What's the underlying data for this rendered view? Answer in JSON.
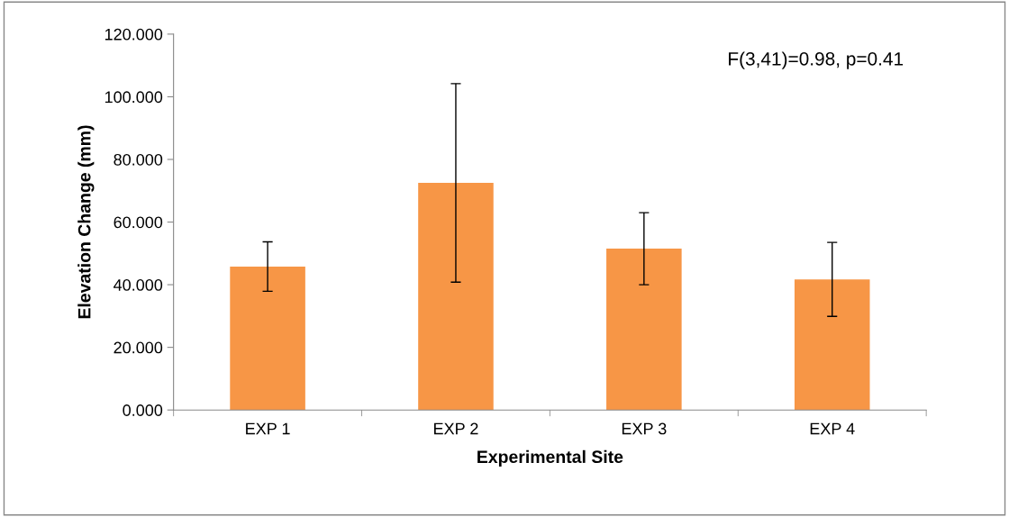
{
  "chart_data": {
    "type": "bar",
    "xlabel": "Experimental Site",
    "ylabel": "Elevation Change (mm)",
    "categories": [
      "EXP 1",
      "EXP 2",
      "EXP 3",
      "EXP 4"
    ],
    "values": [
      45.8,
      72.5,
      51.5,
      41.7
    ],
    "errors": [
      7.9,
      31.7,
      11.5,
      11.8
    ],
    "color": "#f79646",
    "ylim": [
      0,
      120
    ],
    "yticks": [
      {
        "value": 0,
        "label": "0.000"
      },
      {
        "value": 20,
        "label": "20.000"
      },
      {
        "value": 40,
        "label": "40.000"
      },
      {
        "value": 60,
        "label": "60.000"
      },
      {
        "value": 80,
        "label": "80.000"
      },
      {
        "value": 100,
        "label": "100.000"
      },
      {
        "value": 120,
        "label": "120.000"
      }
    ],
    "annotations": [
      "F(3,41)=0.98, p=0.41"
    ],
    "grid": false,
    "legend": false
  }
}
